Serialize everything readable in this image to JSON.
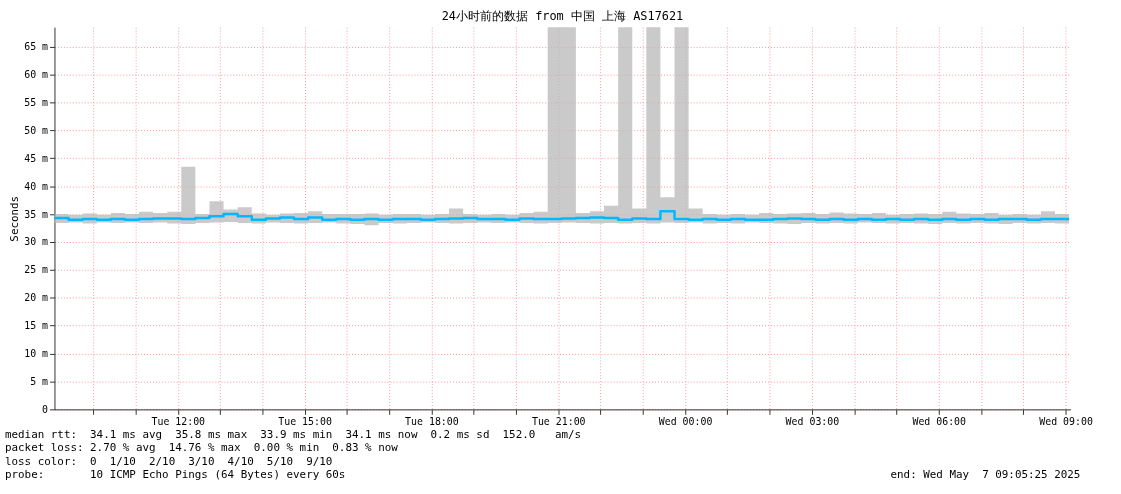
{
  "chart_data": {
    "type": "step",
    "title": "24小时前的数据 from 中国 上海 AS17621",
    "ylabel": "Seconds",
    "x": [
      "2025-05-06T09:05",
      "2025-05-06T09:25",
      "2025-05-06T09:45",
      "2025-05-06T10:05",
      "2025-05-06T10:25",
      "2025-05-06T10:45",
      "2025-05-06T11:05",
      "2025-05-06T11:25",
      "2025-05-06T11:45",
      "2025-05-06T12:05",
      "2025-05-06T12:25",
      "2025-05-06T12:45",
      "2025-05-06T13:05",
      "2025-05-06T13:25",
      "2025-05-06T13:45",
      "2025-05-06T14:05",
      "2025-05-06T14:25",
      "2025-05-06T14:45",
      "2025-05-06T15:05",
      "2025-05-06T15:25",
      "2025-05-06T15:45",
      "2025-05-06T16:05",
      "2025-05-06T16:25",
      "2025-05-06T16:45",
      "2025-05-06T17:05",
      "2025-05-06T17:25",
      "2025-05-06T17:45",
      "2025-05-06T18:05",
      "2025-05-06T18:25",
      "2025-05-06T18:45",
      "2025-05-06T19:05",
      "2025-05-06T19:25",
      "2025-05-06T19:45",
      "2025-05-06T20:05",
      "2025-05-06T20:25",
      "2025-05-06T20:45",
      "2025-05-06T21:05",
      "2025-05-06T21:25",
      "2025-05-06T21:45",
      "2025-05-06T22:05",
      "2025-05-06T22:25",
      "2025-05-06T22:45",
      "2025-05-06T23:05",
      "2025-05-06T23:25",
      "2025-05-06T23:45",
      "2025-05-07T00:05",
      "2025-05-07T00:25",
      "2025-05-07T00:45",
      "2025-05-07T01:05",
      "2025-05-07T01:25",
      "2025-05-07T01:45",
      "2025-05-07T02:05",
      "2025-05-07T02:25",
      "2025-05-07T02:45",
      "2025-05-07T03:05",
      "2025-05-07T03:25",
      "2025-05-07T03:45",
      "2025-05-07T04:05",
      "2025-05-07T04:25",
      "2025-05-07T04:45",
      "2025-05-07T05:05",
      "2025-05-07T05:25",
      "2025-05-07T05:45",
      "2025-05-07T06:05",
      "2025-05-07T06:25",
      "2025-05-07T06:45",
      "2025-05-07T07:05",
      "2025-05-07T07:25",
      "2025-05-07T07:45",
      "2025-05-07T08:05",
      "2025-05-07T08:25",
      "2025-05-07T08:45",
      "2025-05-07T09:05"
    ],
    "series": [
      {
        "color": "#00b8ff",
        "values": [
          34.3,
          34.0,
          34.1,
          34.0,
          34.1,
          34.0,
          34.1,
          34.2,
          34.2,
          34.1,
          34.3,
          34.6,
          35.0,
          34.6,
          34.0,
          34.2,
          34.4,
          34.1,
          34.4,
          34.0,
          34.1,
          34.0,
          34.1,
          34.0,
          34.1,
          34.1,
          34.0,
          34.1,
          34.2,
          34.3,
          34.1,
          34.1,
          34.0,
          34.2,
          34.1,
          34.1,
          34.2,
          34.3,
          34.4,
          34.3,
          34.0,
          34.2,
          34.1,
          35.5,
          34.1,
          34.0,
          34.1,
          34.0,
          34.1,
          34.0,
          34.0,
          34.1,
          34.2,
          34.1,
          34.0,
          34.1,
          34.0,
          34.1,
          34.0,
          34.1,
          34.0,
          34.1,
          34.0,
          34.1,
          34.0,
          34.1,
          34.0,
          34.1,
          34.1,
          34.0,
          34.1,
          34.1,
          34.1
        ],
        "lower": [
          33.4,
          33.5,
          33.3,
          33.5,
          33.4,
          33.5,
          33.4,
          33.5,
          33.3,
          33.2,
          33.4,
          33.5,
          33.6,
          33.4,
          33.3,
          33.5,
          33.4,
          33.3,
          33.4,
          33.5,
          33.3,
          33.2,
          33.0,
          33.4,
          33.3,
          33.4,
          33.5,
          33.4,
          33.3,
          33.4,
          33.5,
          33.4,
          33.5,
          33.4,
          33.3,
          33.4,
          33.5,
          33.4,
          33.3,
          33.4,
          33.3,
          33.4,
          33.3,
          33.5,
          33.4,
          33.5,
          33.3,
          33.4,
          33.3,
          33.5,
          33.4,
          33.3,
          33.2,
          33.4,
          33.3,
          33.4,
          33.3,
          33.5,
          33.4,
          33.3,
          33.4,
          33.3,
          33.2,
          33.4,
          33.3,
          33.4,
          33.3,
          33.2,
          33.4,
          33.3,
          33.4,
          33.3,
          33.4
        ],
        "upper": [
          35.0,
          34.9,
          35.1,
          34.9,
          35.2,
          35.0,
          35.4,
          35.2,
          35.4,
          43.5,
          35.0,
          37.3,
          35.8,
          36.2,
          35.1,
          34.9,
          35.1,
          35.2,
          35.5,
          35.0,
          35.0,
          35.0,
          35.1,
          34.9,
          35.0,
          35.0,
          34.9,
          35.0,
          36.0,
          35.0,
          34.9,
          35.0,
          34.9,
          35.2,
          35.4,
          68.5,
          68.5,
          35.2,
          35.5,
          36.5,
          68.5,
          36.0,
          68.5,
          38.0,
          68.5,
          36.0,
          35.0,
          34.9,
          35.0,
          34.9,
          35.2,
          35.0,
          35.1,
          35.2,
          35.0,
          35.3,
          35.1,
          35.0,
          35.2,
          34.9,
          35.0,
          35.1,
          35.0,
          35.4,
          35.1,
          35.0,
          35.2,
          34.9,
          35.0,
          34.9,
          35.5,
          35.0,
          35.0
        ]
      }
    ],
    "xlim": [
      "2025-05-06T09:05",
      "2025-05-07T09:07"
    ],
    "xticks": [
      {
        "value": "2025-05-06T10:00",
        "label": null
      },
      {
        "value": "2025-05-06T11:00",
        "label": null
      },
      {
        "value": "2025-05-06T12:00",
        "label": "Tue 12:00"
      },
      {
        "value": "2025-05-06T13:00",
        "label": null
      },
      {
        "value": "2025-05-06T14:00",
        "label": null
      },
      {
        "value": "2025-05-06T15:00",
        "label": "Tue 15:00"
      },
      {
        "value": "2025-05-06T16:00",
        "label": null
      },
      {
        "value": "2025-05-06T17:00",
        "label": null
      },
      {
        "value": "2025-05-06T18:00",
        "label": "Tue 18:00"
      },
      {
        "value": "2025-05-06T19:00",
        "label": null
      },
      {
        "value": "2025-05-06T20:00",
        "label": null
      },
      {
        "value": "2025-05-06T21:00",
        "label": "Tue 21:00"
      },
      {
        "value": "2025-05-06T22:00",
        "label": null
      },
      {
        "value": "2025-05-06T23:00",
        "label": null
      },
      {
        "value": "2025-05-07T00:00",
        "label": "Wed 00:00"
      },
      {
        "value": "2025-05-07T01:00",
        "label": null
      },
      {
        "value": "2025-05-07T02:00",
        "label": null
      },
      {
        "value": "2025-05-07T03:00",
        "label": "Wed 03:00"
      },
      {
        "value": "2025-05-07T04:00",
        "label": null
      },
      {
        "value": "2025-05-07T05:00",
        "label": null
      },
      {
        "value": "2025-05-07T06:00",
        "label": "Wed 06:00"
      },
      {
        "value": "2025-05-07T07:00",
        "label": null
      },
      {
        "value": "2025-05-07T08:00",
        "label": null
      },
      {
        "value": "2025-05-07T09:00",
        "label": "Wed 09:00"
      }
    ],
    "ylim": [
      0,
      68.5
    ],
    "yticks": [
      0,
      {
        "value": 5,
        "label": "5 m"
      },
      {
        "value": 10,
        "label": "10 m"
      },
      {
        "value": 15,
        "label": "15 m"
      },
      {
        "value": 20,
        "label": "20 m"
      },
      {
        "value": 25,
        "label": "25 m"
      },
      {
        "value": 30,
        "label": "30 m"
      },
      {
        "value": 35,
        "label": "35 m"
      },
      {
        "value": 40,
        "label": "40 m"
      },
      {
        "value": 45,
        "label": "45 m"
      },
      {
        "value": 50,
        "label": "50 m"
      },
      {
        "value": 55,
        "label": "55 m"
      },
      {
        "value": 60,
        "label": "60 m"
      },
      {
        "value": 65,
        "label": "65 m"
      }
    ],
    "grid": true,
    "annotations": [
      "median rtt:  34.1 ms avg  35.8 ms max  33.9 ms min  34.1 ms now  0.2 ms sd  152.0   am/s",
      "packet loss: 2.70 % avg  14.76 % max  0.00 % min  0.83 % now",
      "loss color:  0  1/10  2/10  3/10  4/10  5/10  9/10",
      "probe:       10 ICMP Echo Pings (64 Bytes) every 60s",
      "end: Wed May  7 09:05:25 2025"
    ]
  }
}
